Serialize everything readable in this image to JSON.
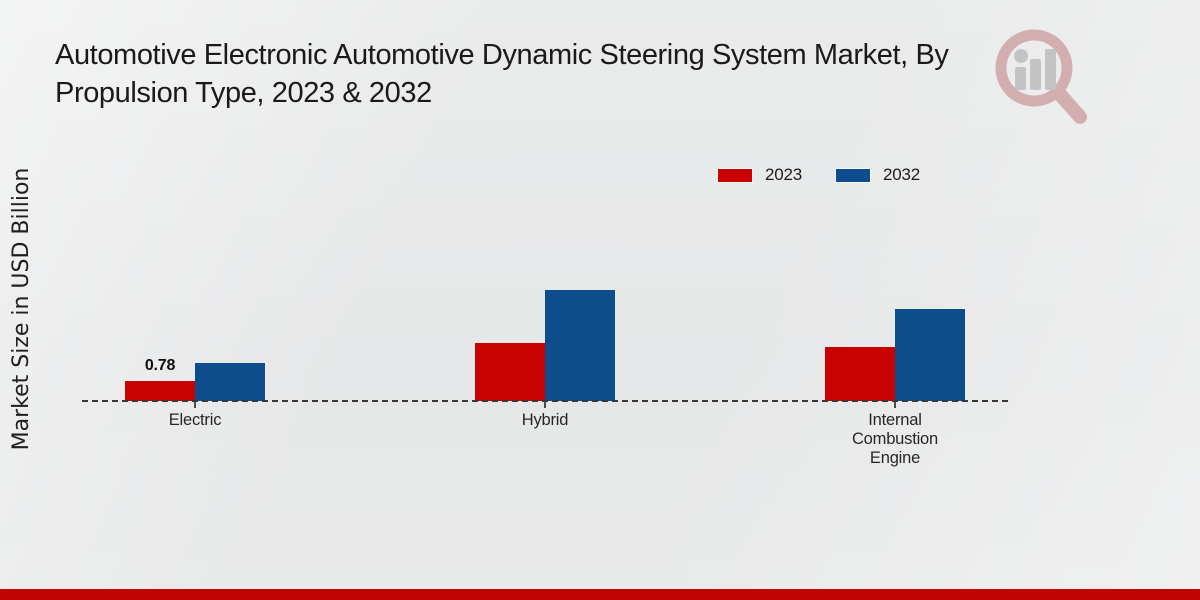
{
  "page": {
    "title_line1": "Automotive Electronic Automotive Dynamic Steering System Market, By",
    "title_line2": "Propulsion Type, 2023 & 2032"
  },
  "icons": {
    "watermark": "magnifier-bar-chart-logo"
  },
  "colors": {
    "series_2023_red": "#c80202",
    "series_2032_blue": "#0e4d8c",
    "footer_band_red": "#c00404",
    "baseline_gray": "#383838",
    "background_gray": "#e8e9e9"
  },
  "chart_data": {
    "type": "bar",
    "title": "Automotive Electronic Automotive Dynamic Steering System Market, By Propulsion Type, 2023 & 2032",
    "xlabel": "",
    "ylabel": "Market Size in USD Billion",
    "categories": [
      "Electric",
      "Hybrid",
      "Internal Combustion Engine"
    ],
    "series": [
      {
        "name": "2023",
        "color": "#c80202",
        "values": [
          0.78,
          2.2,
          2.07
        ]
      },
      {
        "name": "2032",
        "color": "#0e4d8c",
        "values": [
          1.46,
          4.24,
          3.5
        ]
      }
    ],
    "value_labels": [
      {
        "category_index": 0,
        "series_index": 0,
        "text": "0.78"
      }
    ],
    "ylim": [
      0,
      4.5
    ],
    "grid": false,
    "y_axis_ticks_visible": false,
    "baseline_style": "dashed",
    "legend_position": "top-right"
  },
  "footer": {}
}
